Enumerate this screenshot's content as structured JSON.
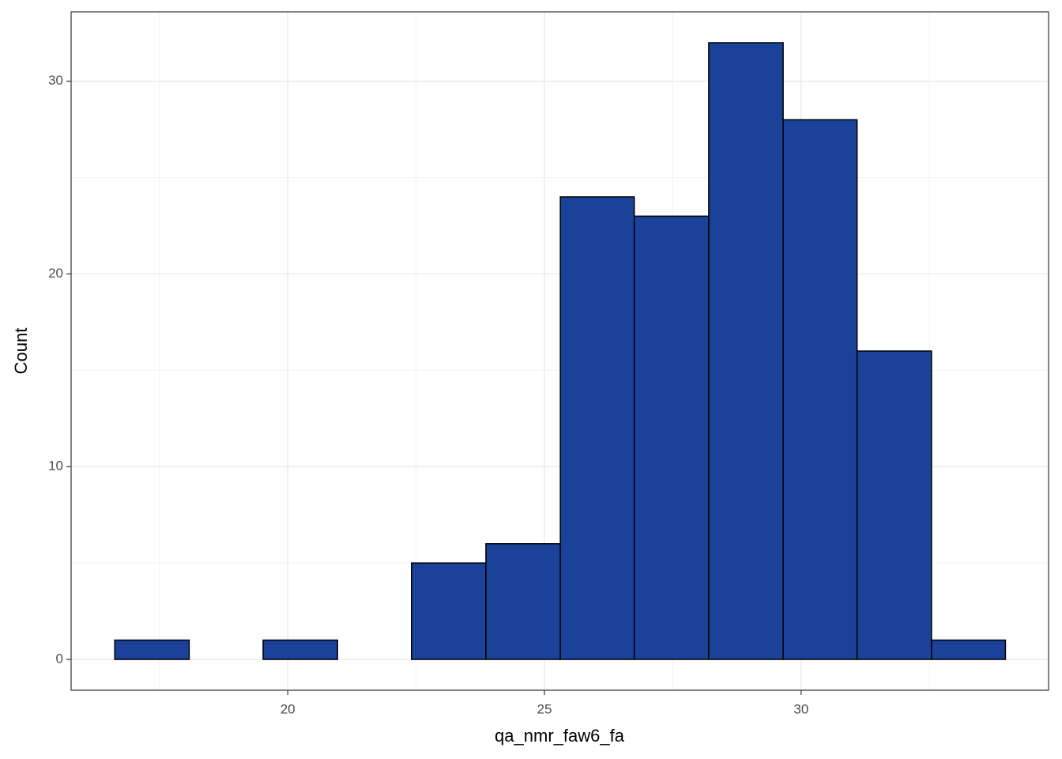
{
  "chart_data": {
    "type": "histogram",
    "x_label": "qa_nmr_faw6_fa",
    "y_label": "Count",
    "bins": [
      16.63,
      18.08,
      19.52,
      20.97,
      22.41,
      23.86,
      25.31,
      26.75,
      28.2,
      29.65,
      31.09,
      32.54,
      33.98
    ],
    "values": [
      1,
      0,
      1,
      0,
      5,
      6,
      24,
      23,
      32,
      28,
      16,
      1
    ],
    "color": "#1a4299",
    "edge_color": "#000000",
    "xlim": [
      15.78,
      34.82
    ],
    "xticks": [
      20,
      25,
      30
    ],
    "ylim": [
      -1.6,
      33.6
    ],
    "yticks": [
      0,
      10,
      20,
      30
    ],
    "grid": true
  }
}
